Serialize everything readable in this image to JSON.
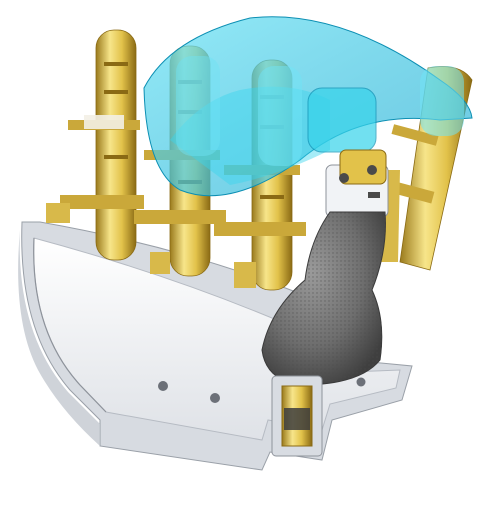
{
  "scene": {
    "subject": "robotic-hand-cad-render",
    "colors": {
      "background": "#ffffff",
      "gold": "#e2c24a",
      "gold_light": "#f7e58a",
      "gold_dark": "#9a7a1c",
      "palm_white": "#f1f3f6",
      "palm_shadow": "#c8ccd3",
      "palm_dark": "#8e939b",
      "cyan_transparent": "#28c8e6",
      "gray_mesh": "#6e6e6e",
      "gray_mesh_dark": "#4a4a4a"
    }
  }
}
